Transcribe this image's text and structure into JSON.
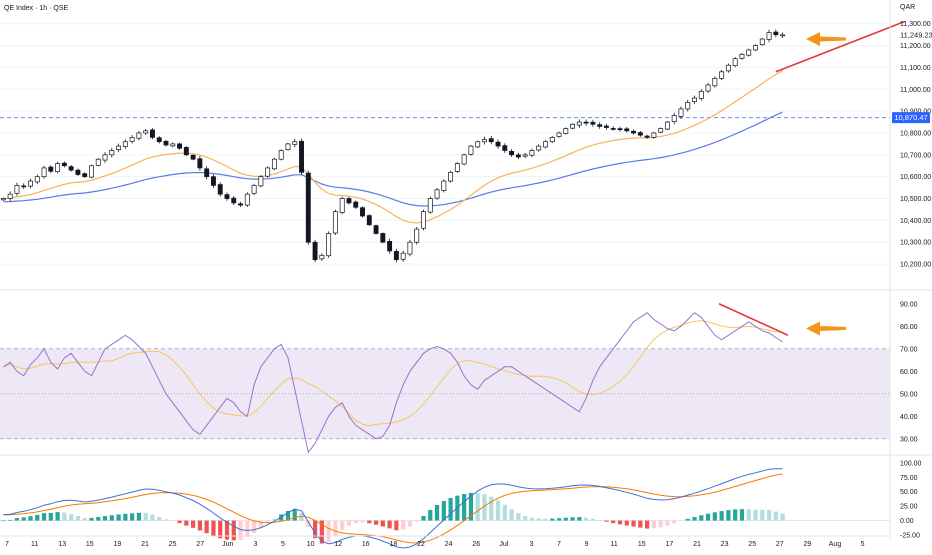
{
  "header": {
    "symbol_line": "QE Index · 1h · QSE",
    "currency": "QAR"
  },
  "colors": {
    "up": "#ffffff",
    "up_border": "#131722",
    "down": "#131722",
    "ema_fast": "#f7b35b",
    "ema_slow": "#5b7be8",
    "rsi": "#9575cd",
    "rsi_ma": "#f5c85a",
    "rsi_band": "#ede7f6",
    "macd": "#3f6fd8",
    "signal": "#f57c00",
    "hist_pos_strong": "#26a69a",
    "hist_pos_weak": "#b2dfdb",
    "hist_neg_strong": "#ef5350",
    "hist_neg_weak": "#ffcdd2",
    "annotation_line": "#e53935",
    "annotation_arrow": "#f7931a",
    "last_price_badge": "#2962ff",
    "ref_badge": "#2962ff"
  },
  "x_axis": {
    "labels": [
      "7",
      "11",
      "13",
      "15",
      "19",
      "21",
      "25",
      "27",
      "Jun",
      "3",
      "5",
      "10",
      "12",
      "16",
      "18",
      "22",
      "24",
      "26",
      "Jul",
      "3",
      "7",
      "9",
      "11",
      "15",
      "17",
      "21",
      "23",
      "25",
      "27",
      "29",
      "Aug",
      "5"
    ]
  },
  "chart_data": [
    {
      "type": "candlestick",
      "panel": "price",
      "y_ticks": [
        "11,300.00",
        "11,200.00",
        "11,100.00",
        "11,000.00",
        "10,900.00",
        "10,800.00",
        "10,700.00",
        "10,600.00",
        "10,500.00",
        "10,400.00",
        "10,300.00",
        "10,200.00"
      ],
      "ylim": [
        10150,
        11340
      ],
      "last_price_label": "11,249.23",
      "last_price": 11249.23,
      "reference_label": "10,870.47",
      "reference_level": 10870.47,
      "closes": [
        10500,
        10520,
        10560,
        10555,
        10580,
        10600,
        10640,
        10625,
        10660,
        10650,
        10630,
        10610,
        10600,
        10650,
        10680,
        10700,
        10720,
        10740,
        10760,
        10780,
        10800,
        10810,
        10780,
        10760,
        10745,
        10750,
        10730,
        10700,
        10680,
        10640,
        10600,
        10560,
        10520,
        10500,
        10480,
        10470,
        10520,
        10560,
        10600,
        10640,
        10680,
        10720,
        10750,
        10760,
        10620,
        10300,
        10220,
        10240,
        10340,
        10440,
        10500,
        10480,
        10460,
        10420,
        10380,
        10340,
        10300,
        10260,
        10220,
        10250,
        10300,
        10360,
        10440,
        10500,
        10540,
        10580,
        10620,
        10660,
        10700,
        10740,
        10760,
        10770,
        10760,
        10740,
        10720,
        10700,
        10690,
        10700,
        10720,
        10740,
        10760,
        10780,
        10800,
        10820,
        10840,
        10850,
        10845,
        10840,
        10830,
        10825,
        10820,
        10815,
        10810,
        10800,
        10790,
        10780,
        10800,
        10820,
        10850,
        10880,
        10910,
        10940,
        10960,
        10990,
        11020,
        11050,
        11080,
        11110,
        11140,
        11160,
        11180,
        11200,
        11230,
        11260,
        11250,
        11249
      ],
      "ema_fast": {
        "name": "EMA fast"
      },
      "ema_slow": {
        "name": "EMA slow"
      },
      "annotations": [
        {
          "type": "trendline",
          "color": "red",
          "from": [
            121,
            11080
          ],
          "to": [
            137,
            11310
          ]
        },
        {
          "type": "arrow",
          "direction": "left",
          "at_price": 11230
        }
      ]
    },
    {
      "type": "line",
      "panel": "rsi",
      "y_ticks": [
        "90.00",
        "80.00",
        "70.00",
        "60.00",
        "50.00",
        "40.00",
        "30.00"
      ],
      "ylim": [
        25,
        93
      ],
      "band": [
        30,
        70
      ],
      "midline": 50,
      "rsi": [
        62,
        64,
        60,
        58,
        63,
        66,
        70,
        64,
        61,
        66,
        68,
        64,
        60,
        58,
        64,
        70,
        72,
        74,
        76,
        74,
        71,
        68,
        62,
        56,
        50,
        46,
        42,
        38,
        34,
        32,
        36,
        40,
        44,
        48,
        46,
        42,
        40,
        54,
        62,
        66,
        70,
        72,
        66,
        52,
        38,
        24,
        28,
        34,
        40,
        44,
        46,
        40,
        36,
        34,
        32,
        30,
        31,
        36,
        46,
        54,
        60,
        64,
        68,
        70,
        71,
        70,
        68,
        64,
        58,
        54,
        52,
        56,
        58,
        60,
        62,
        62,
        60,
        58,
        56,
        54,
        52,
        50,
        48,
        46,
        44,
        42,
        48,
        56,
        62,
        66,
        70,
        74,
        78,
        82,
        84,
        86,
        83,
        81,
        79,
        78,
        80,
        83,
        86,
        84,
        80,
        76,
        74,
        76,
        78,
        80,
        82,
        80,
        78,
        77,
        75,
        73
      ],
      "rsi_ma": {
        "name": "RSI-based MA"
      },
      "annotations": [
        {
          "type": "trendline",
          "color": "red"
        },
        {
          "type": "arrow",
          "direction": "left",
          "at_value": 79
        }
      ]
    },
    {
      "type": "line",
      "panel": "macd",
      "y_ticks": [
        "100.00",
        "75.00",
        "50.00",
        "25.00",
        "0.00",
        "-25.00"
      ],
      "ylim": [
        -25,
        105
      ],
      "macd_line": {
        "name": "MACD"
      },
      "signal_line": {
        "name": "Signal"
      },
      "histogram": {
        "name": "Histogram"
      }
    }
  ]
}
